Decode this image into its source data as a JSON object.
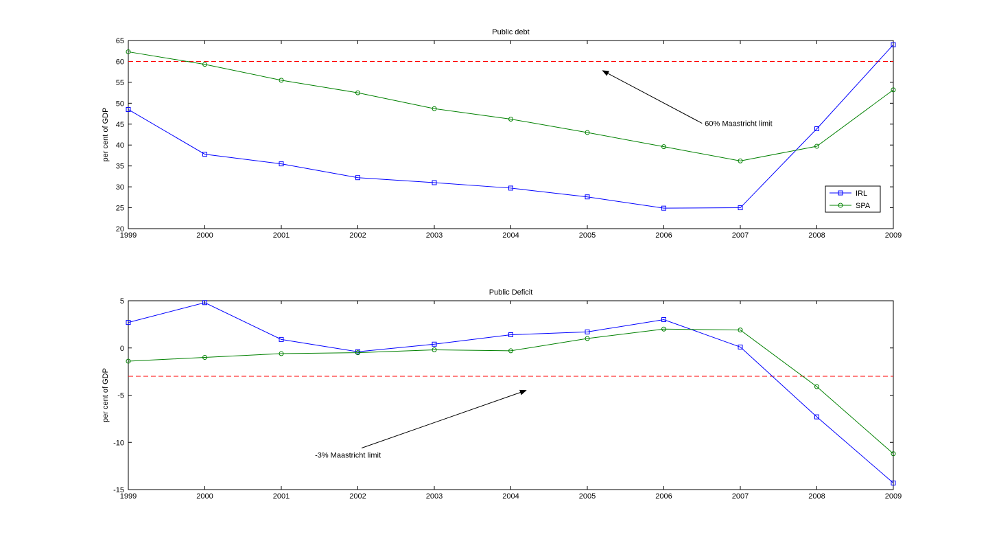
{
  "chart_data": [
    {
      "type": "line",
      "title": "Public debt",
      "ylabel": "per cent of GDP",
      "xlabel": "",
      "x": [
        1999,
        2000,
        2001,
        2002,
        2003,
        2004,
        2005,
        2006,
        2007,
        2008,
        2009
      ],
      "xlim": [
        1999,
        2009
      ],
      "ylim": [
        20,
        65
      ],
      "yticks": [
        20,
        25,
        30,
        35,
        40,
        45,
        50,
        55,
        60,
        65
      ],
      "series": [
        {
          "name": "IRL",
          "color": "#0000ff",
          "marker": "square",
          "values": [
            48.5,
            37.8,
            35.5,
            32.2,
            31.0,
            29.7,
            27.6,
            24.9,
            25.0,
            43.9,
            64.0
          ]
        },
        {
          "name": "SPA",
          "color": "#008000",
          "marker": "circle",
          "values": [
            62.3,
            59.3,
            55.5,
            52.5,
            48.7,
            46.2,
            43.0,
            39.6,
            36.2,
            39.7,
            53.2
          ]
        }
      ],
      "reference_line": {
        "y": 60,
        "color": "#ff0000",
        "style": "dashed"
      },
      "annotation": {
        "text": "60% Maastricht limit",
        "x": 2006.5,
        "y": 45.2,
        "arrow_to": [
          2005.2,
          57.8
        ]
      },
      "legend": {
        "placement": "bottom-right",
        "entries": [
          "IRL",
          "SPA"
        ]
      },
      "grid": false
    },
    {
      "type": "line",
      "title": "Public Deficit",
      "ylabel": "per cent of GDP",
      "xlabel": "",
      "x": [
        1999,
        2000,
        2001,
        2002,
        2003,
        2004,
        2005,
        2006,
        2007,
        2008,
        2009
      ],
      "xlim": [
        1999,
        2009
      ],
      "ylim": [
        -15,
        5
      ],
      "yticks": [
        -15,
        -10,
        -5,
        0,
        5
      ],
      "series": [
        {
          "name": "IRL",
          "color": "#0000ff",
          "marker": "square",
          "values": [
            2.7,
            4.8,
            0.9,
            -0.4,
            0.4,
            1.4,
            1.7,
            3.0,
            0.1,
            -7.3,
            -14.3
          ]
        },
        {
          "name": "SPA",
          "color": "#008000",
          "marker": "circle",
          "values": [
            -1.4,
            -1.0,
            -0.6,
            -0.5,
            -0.2,
            -0.3,
            1.0,
            2.0,
            1.9,
            -4.1,
            -11.2
          ]
        }
      ],
      "reference_line": {
        "y": -3,
        "color": "#ff0000",
        "style": "dashed"
      },
      "annotation": {
        "text": "-3% Maastricht limit",
        "x": 2002.05,
        "y": -10.6,
        "arrow_to": [
          2004.2,
          -4.5
        ]
      },
      "grid": false
    }
  ]
}
